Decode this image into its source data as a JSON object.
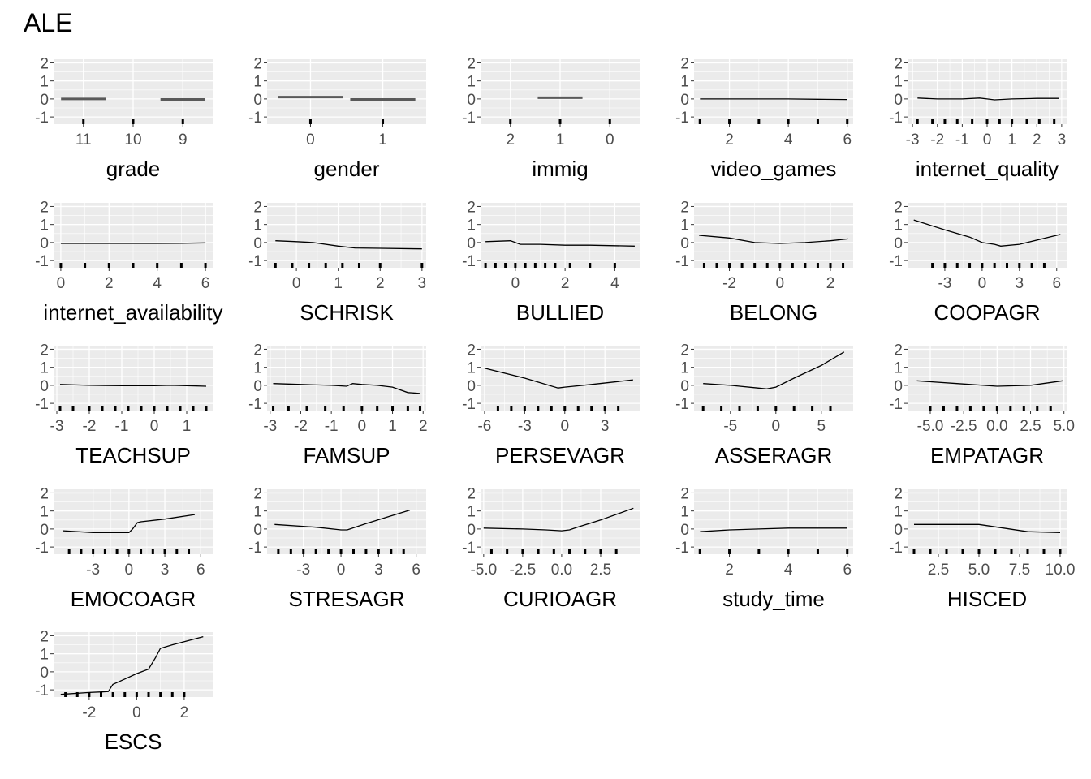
{
  "title": "ALE",
  "chart_data": {
    "type": "line",
    "ylim": [
      -1.4,
      2.2
    ],
    "yticks": [
      -1,
      0,
      1,
      2
    ],
    "grid": true,
    "panels": [
      {
        "xlabel": "grade",
        "kind": "categorical",
        "categories": [
          "11",
          "10",
          "9"
        ],
        "x": [
          1,
          2,
          3
        ],
        "y": [
          0.0,
          null,
          -0.03
        ],
        "rug": [
          1,
          2,
          3
        ]
      },
      {
        "xlabel": "gender",
        "kind": "categorical",
        "categories": [
          "0",
          "1"
        ],
        "x": [
          1,
          2
        ],
        "y": [
          0.1,
          -0.03
        ],
        "rug": [
          1,
          2
        ]
      },
      {
        "xlabel": "immig",
        "kind": "categorical",
        "categories": [
          "2",
          "1",
          "0"
        ],
        "x": [
          1,
          2,
          3
        ],
        "y": [
          null,
          0.07,
          null
        ],
        "rug": [
          1,
          2,
          3
        ]
      },
      {
        "xlabel": "video_games",
        "kind": "numeric",
        "xlim": [
          0.8,
          6.2
        ],
        "xticks": [
          2,
          4,
          6
        ],
        "x": [
          1,
          2,
          3,
          4,
          5,
          6
        ],
        "y": [
          0.0,
          0.0,
          0.0,
          0.0,
          -0.02,
          -0.03
        ],
        "rug": [
          1,
          2,
          3,
          4,
          5,
          6
        ]
      },
      {
        "xlabel": "internet_quality",
        "kind": "numeric",
        "xlim": [
          -3.2,
          3.2
        ],
        "xticks": [
          -3,
          -2,
          -1,
          0,
          1,
          2,
          3
        ],
        "tick_labels": [
          "-3",
          "-2",
          "-1",
          "0",
          "1",
          "2",
          "3"
        ],
        "x": [
          -2.8,
          -2,
          -1,
          -0.3,
          0,
          0.3,
          1,
          2,
          2.9
        ],
        "y": [
          0.05,
          0.0,
          0.0,
          0.05,
          0.0,
          -0.05,
          0.0,
          0.03,
          0.03
        ],
        "rug": [
          -2.8,
          -2.2,
          -1.7,
          -1.2,
          -0.6,
          0,
          0.5,
          1,
          1.6,
          2.1,
          2.7
        ]
      },
      {
        "xlabel": "internet_availability",
        "kind": "numeric",
        "xlim": [
          -0.3,
          6.3
        ],
        "xticks": [
          0,
          2,
          4,
          6
        ],
        "x": [
          0,
          1,
          2,
          3,
          4,
          5,
          6
        ],
        "y": [
          -0.05,
          -0.05,
          -0.05,
          -0.05,
          -0.05,
          -0.04,
          -0.02
        ],
        "rug": [
          0,
          1,
          2,
          3,
          4,
          5,
          6
        ]
      },
      {
        "xlabel": "SCHRISK",
        "kind": "numeric",
        "xlim": [
          -0.7,
          3.1
        ],
        "xticks": [
          0,
          1,
          2,
          3
        ],
        "x": [
          -0.5,
          0,
          0.4,
          1,
          1.4,
          2,
          3
        ],
        "y": [
          0.1,
          0.05,
          0.0,
          -0.2,
          -0.3,
          -0.32,
          -0.35
        ],
        "rug": [
          -0.5,
          -0.1,
          0.3,
          0.7,
          1.1,
          1.5,
          2,
          3
        ]
      },
      {
        "xlabel": "BULLIED",
        "kind": "numeric",
        "xlim": [
          -1.4,
          5.0
        ],
        "xticks": [
          0,
          2,
          4
        ],
        "x": [
          -1.2,
          -0.2,
          0,
          0.2,
          1,
          2,
          3,
          4.8
        ],
        "y": [
          0.05,
          0.1,
          0.0,
          -0.1,
          -0.1,
          -0.15,
          -0.15,
          -0.2
        ],
        "rug": [
          -1.2,
          -0.8,
          -0.4,
          0,
          0.4,
          0.8,
          1.2,
          1.6,
          2.2,
          3,
          4
        ]
      },
      {
        "xlabel": "BELONG",
        "kind": "numeric",
        "xlim": [
          -3.4,
          2.9
        ],
        "xticks": [
          -2,
          0,
          2
        ],
        "x": [
          -3.2,
          -2,
          -1,
          0,
          1,
          2,
          2.7
        ],
        "y": [
          0.4,
          0.25,
          0.0,
          -0.05,
          0.0,
          0.1,
          0.2
        ],
        "rug": [
          -3,
          -2.5,
          -2,
          -1.5,
          -1,
          -0.5,
          0,
          0.5,
          1,
          1.5,
          2,
          2.5
        ]
      },
      {
        "xlabel": "COOPAGR",
        "kind": "numeric",
        "xlim": [
          -6.0,
          6.8
        ],
        "xticks": [
          -3,
          0,
          3,
          6
        ],
        "x": [
          -5.5,
          -3,
          -1,
          0,
          1,
          1.5,
          3,
          6.3
        ],
        "y": [
          1.25,
          0.7,
          0.3,
          0.0,
          -0.1,
          -0.2,
          -0.1,
          0.45
        ],
        "rug": [
          -4,
          -3,
          -2,
          -1,
          0,
          1,
          2,
          3,
          4,
          5
        ]
      },
      {
        "xlabel": "TEACHSUP",
        "kind": "numeric",
        "xlim": [
          -3.1,
          1.8
        ],
        "xticks": [
          -3,
          -2,
          -1,
          0,
          1
        ],
        "x": [
          -2.9,
          -2,
          -1,
          0,
          0.5,
          1,
          1.6
        ],
        "y": [
          0.05,
          0.0,
          -0.02,
          -0.02,
          0.0,
          -0.02,
          -0.05
        ],
        "rug": [
          -2.9,
          -2.5,
          -2,
          -1.6,
          -1.2,
          -0.8,
          -0.4,
          0,
          0.4,
          0.8,
          1.2,
          1.6
        ]
      },
      {
        "xlabel": "FAMSUP",
        "kind": "numeric",
        "xlim": [
          -3.1,
          2.1
        ],
        "xticks": [
          -3,
          -2,
          -1,
          0,
          1,
          2
        ],
        "x": [
          -2.9,
          -2,
          -1,
          -0.5,
          -0.3,
          0,
          0.5,
          1,
          1.5,
          1.9
        ],
        "y": [
          0.1,
          0.05,
          0.0,
          -0.05,
          0.1,
          0.05,
          0.0,
          -0.1,
          -0.4,
          -0.45
        ],
        "rug": [
          -2.9,
          -2.4,
          -1.8,
          -1.2,
          -0.6,
          0,
          0.5,
          1,
          1.5,
          1.9
        ]
      },
      {
        "xlabel": "PERSEVAGR",
        "kind": "numeric",
        "xlim": [
          -6.3,
          5.6
        ],
        "xticks": [
          -6,
          -3,
          0,
          3
        ],
        "x": [
          -6,
          -3,
          -0.5,
          0,
          2,
          5.1
        ],
        "y": [
          0.95,
          0.4,
          -0.15,
          -0.1,
          0.05,
          0.3
        ],
        "rug": [
          -5,
          -4,
          -3,
          -2,
          -1,
          0,
          1,
          2,
          3,
          4
        ]
      },
      {
        "xlabel": "ASSERAGR",
        "kind": "numeric",
        "xlim": [
          -9.0,
          8.5
        ],
        "xticks": [
          -5,
          0,
          5
        ],
        "x": [
          -8,
          -5,
          -2,
          -1,
          0,
          2,
          5,
          7.5
        ],
        "y": [
          0.1,
          0.0,
          -0.15,
          -0.2,
          -0.1,
          0.4,
          1.1,
          1.85
        ],
        "rug": [
          -8,
          -6,
          -4,
          -2,
          0,
          2,
          4,
          6
        ]
      },
      {
        "xlabel": "EMPATAGR",
        "kind": "numeric",
        "xlim": [
          -6.7,
          5.2
        ],
        "xticks": [
          -5,
          -2.5,
          0,
          2.5,
          5
        ],
        "tick_labels": [
          "-5.0",
          "-2.5",
          "0.0",
          "2.5",
          "5.0"
        ],
        "x": [
          -6,
          -3,
          0,
          2.5,
          4.9
        ],
        "y": [
          0.25,
          0.1,
          -0.05,
          0.0,
          0.25
        ],
        "rug": [
          -5,
          -4,
          -3,
          -2,
          -1,
          0,
          1,
          2,
          3,
          4
        ]
      },
      {
        "xlabel": "EMOCOAGR",
        "kind": "numeric",
        "xlim": [
          -6.3,
          7.0
        ],
        "xticks": [
          -3,
          0,
          3,
          6
        ],
        "x": [
          -5.5,
          -3,
          0,
          0.3,
          0.7,
          1,
          3,
          5.5
        ],
        "y": [
          -0.1,
          -0.2,
          -0.2,
          0.0,
          0.35,
          0.4,
          0.55,
          0.8
        ],
        "rug": [
          -5,
          -4,
          -3,
          -2,
          -1,
          0,
          1,
          2,
          3,
          4,
          5
        ]
      },
      {
        "xlabel": "STRESAGR",
        "kind": "numeric",
        "xlim": [
          -5.9,
          6.8
        ],
        "xticks": [
          -3,
          0,
          3,
          6
        ],
        "x": [
          -5.3,
          -2,
          0,
          0.5,
          2,
          5.5
        ],
        "y": [
          0.25,
          0.1,
          -0.05,
          -0.05,
          0.3,
          1.05
        ],
        "rug": [
          -5,
          -4,
          -3,
          -2,
          -1,
          0,
          1,
          2,
          3,
          4,
          5
        ]
      },
      {
        "xlabel": "CURIOAGR",
        "kind": "numeric",
        "xlim": [
          -5.2,
          5.0
        ],
        "xticks": [
          -5,
          -2.5,
          0,
          2.5
        ],
        "tick_labels": [
          "-5.0",
          "-2.5",
          "0.0",
          "2.5"
        ],
        "x": [
          -5,
          -2.5,
          -1,
          0,
          0.5,
          1,
          2.5,
          4.6
        ],
        "y": [
          0.05,
          0.0,
          -0.05,
          -0.1,
          -0.05,
          0.1,
          0.5,
          1.15
        ],
        "rug": [
          -4.5,
          -3.5,
          -2.5,
          -1.5,
          -0.5,
          0.5,
          1.5,
          2.5,
          3.5
        ]
      },
      {
        "xlabel": "study_time",
        "kind": "numeric",
        "xlim": [
          0.8,
          6.2
        ],
        "xticks": [
          2,
          4,
          6
        ],
        "x": [
          1,
          2,
          3,
          4,
          5,
          6
        ],
        "y": [
          -0.15,
          -0.05,
          0.0,
          0.05,
          0.05,
          0.05
        ],
        "rug": [
          1,
          2,
          3,
          4,
          5,
          6
        ]
      },
      {
        "xlabel": "HISCED",
        "kind": "numeric",
        "xlim": [
          0.6,
          10.4
        ],
        "xticks": [
          2.5,
          5,
          7.5,
          10
        ],
        "tick_labels": [
          "2.5",
          "5.0",
          "7.5",
          "10.0"
        ],
        "x": [
          1,
          3,
          5,
          8,
          10
        ],
        "y": [
          0.25,
          0.25,
          0.25,
          -0.15,
          -0.2
        ],
        "rug": [
          1,
          2,
          3,
          4,
          5,
          6,
          7,
          8,
          9,
          10
        ]
      },
      {
        "xlabel": "ESCS",
        "kind": "numeric",
        "xlim": [
          -3.5,
          3.2
        ],
        "xticks": [
          -2,
          0,
          2
        ],
        "x": [
          -3.2,
          -2,
          -1.2,
          -1,
          -0.5,
          0,
          0.5,
          0.8,
          1,
          1.5,
          2.8
        ],
        "y": [
          -1.25,
          -1.15,
          -1.1,
          -0.7,
          -0.4,
          -0.1,
          0.15,
          0.8,
          1.3,
          1.5,
          1.95
        ],
        "rug": [
          -3,
          -2.5,
          -2,
          -1.5,
          -1,
          -0.5,
          0,
          0.5,
          1,
          1.5,
          2
        ]
      }
    ]
  }
}
